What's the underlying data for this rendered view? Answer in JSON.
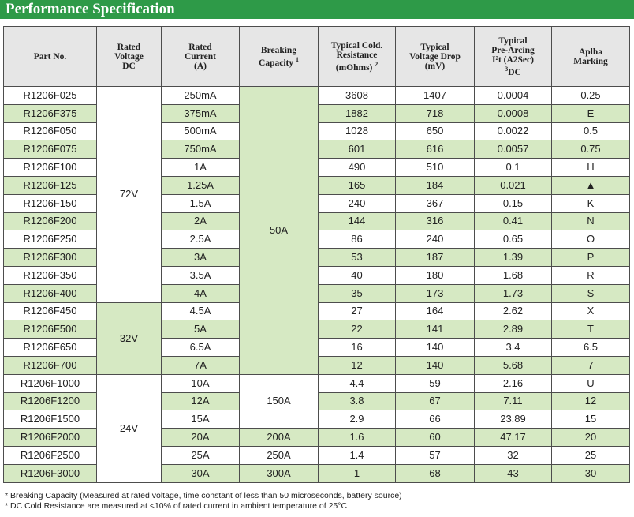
{
  "title": "Performance Specification",
  "headers": {
    "part_no": "Part No.",
    "rated_voltage": [
      "Rated",
      "Voltage",
      "DC"
    ],
    "rated_current": [
      "Rated",
      "Current",
      "(A)"
    ],
    "breaking": [
      "Breaking",
      "Capacity"
    ],
    "breaking_sup": "1",
    "resistance": [
      "Typical Cold.",
      "Resistance",
      "(mOhms)"
    ],
    "resistance_sup": "2",
    "voltage_drop": [
      "Typical",
      "Voltage Drop",
      "(mV)"
    ],
    "prearc": [
      "Typical",
      "Pre-Arcing",
      "I²t (A2Sec)",
      "DC"
    ],
    "prearc_sup": "3",
    "marking": [
      "Aplha",
      "Marking"
    ]
  },
  "voltage_groups": [
    "72V",
    "32V",
    "24V"
  ],
  "breaking_groups": [
    "50A",
    "150A",
    "200A",
    "250A",
    "300A"
  ],
  "rows": [
    {
      "part": "R1206F025",
      "current": "250mA",
      "res": "3608",
      "vdrop": "1407",
      "i2t": "0.0004",
      "mark": "0.25"
    },
    {
      "part": "R1206F375",
      "current": "375mA",
      "res": "1882",
      "vdrop": "718",
      "i2t": "0.0008",
      "mark": "E"
    },
    {
      "part": "R1206F050",
      "current": "500mA",
      "res": "1028",
      "vdrop": "650",
      "i2t": "0.0022",
      "mark": "0.5"
    },
    {
      "part": "R1206F075",
      "current": "750mA",
      "res": "601",
      "vdrop": "616",
      "i2t": "0.0057",
      "mark": "0.75"
    },
    {
      "part": "R1206F100",
      "current": "1A",
      "res": "490",
      "vdrop": "510",
      "i2t": "0.1",
      "mark": "H"
    },
    {
      "part": "R1206F125",
      "current": "1.25A",
      "res": "165",
      "vdrop": "184",
      "i2t": "0.021",
      "mark": "▲"
    },
    {
      "part": "R1206F150",
      "current": "1.5A",
      "res": "240",
      "vdrop": "367",
      "i2t": "0.15",
      "mark": "K"
    },
    {
      "part": "R1206F200",
      "current": "2A",
      "res": "144",
      "vdrop": "316",
      "i2t": "0.41",
      "mark": "N"
    },
    {
      "part": "R1206F250",
      "current": "2.5A",
      "res": "86",
      "vdrop": "240",
      "i2t": "0.65",
      "mark": "O"
    },
    {
      "part": "R1206F300",
      "current": "3A",
      "res": "53",
      "vdrop": "187",
      "i2t": "1.39",
      "mark": "P"
    },
    {
      "part": "R1206F350",
      "current": "3.5A",
      "res": "40",
      "vdrop": "180",
      "i2t": "1.68",
      "mark": "R"
    },
    {
      "part": "R1206F400",
      "current": "4A",
      "res": "35",
      "vdrop": "173",
      "i2t": "1.73",
      "mark": "S"
    },
    {
      "part": "R1206F450",
      "current": "4.5A",
      "res": "27",
      "vdrop": "164",
      "i2t": "2.62",
      "mark": "X"
    },
    {
      "part": "R1206F500",
      "current": "5A",
      "res": "22",
      "vdrop": "141",
      "i2t": "2.89",
      "mark": "T"
    },
    {
      "part": "R1206F650",
      "current": "6.5A",
      "res": "16",
      "vdrop": "140",
      "i2t": "3.4",
      "mark": "6.5"
    },
    {
      "part": "R1206F700",
      "current": "7A",
      "res": "12",
      "vdrop": "140",
      "i2t": "5.68",
      "mark": "7"
    },
    {
      "part": "R1206F1000",
      "current": "10A",
      "res": "4.4",
      "vdrop": "59",
      "i2t": "2.16",
      "mark": "U"
    },
    {
      "part": "R1206F1200",
      "current": "12A",
      "res": "3.8",
      "vdrop": "67",
      "i2t": "7.11",
      "mark": "12"
    },
    {
      "part": "R1206F1500",
      "current": "15A",
      "res": "2.9",
      "vdrop": "66",
      "i2t": "23.89",
      "mark": "15"
    },
    {
      "part": "R1206F2000",
      "current": "20A",
      "res": "1.6",
      "vdrop": "60",
      "i2t": "47.17",
      "mark": "20"
    },
    {
      "part": "R1206F2500",
      "current": "25A",
      "res": "1.4",
      "vdrop": "57",
      "i2t": "32",
      "mark": "25"
    },
    {
      "part": "R1206F3000",
      "current": "30A",
      "res": "1",
      "vdrop": "68",
      "i2t": "43",
      "mark": "30"
    }
  ],
  "footnotes": [
    "* Breaking Capacity (Measured at rated voltage, time constant of less than 50 microseconds, battery source)",
    "* DC Cold Resistance are measured at <10% of rated current in ambient temperature of 25°C"
  ]
}
